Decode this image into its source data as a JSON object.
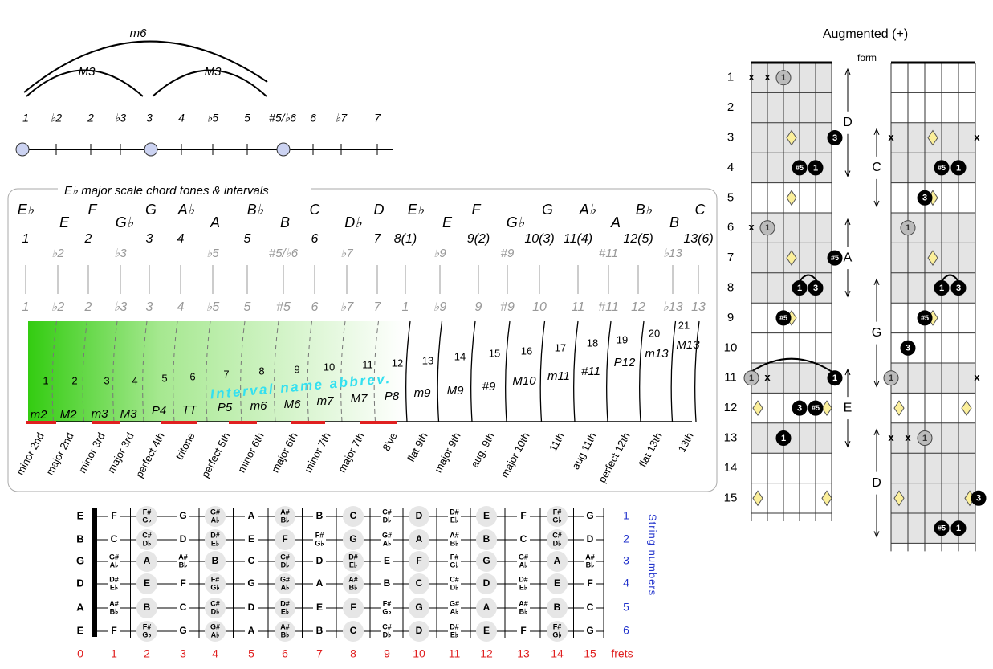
{
  "arc_diagram": {
    "arcs": [
      "m6",
      "M3",
      "M3"
    ],
    "labels": [
      "1",
      "♭2",
      "2",
      "♭3",
      "3",
      "4",
      "♭5",
      "5",
      "#5/♭6",
      "6",
      "♭7",
      "7"
    ]
  },
  "scale_box": {
    "title": "E♭ major scale chord tones & intervals",
    "notes": [
      "E♭",
      "E",
      "F",
      "G♭",
      "G",
      "A♭",
      "A",
      "B♭",
      "B",
      "C",
      "D♭",
      "D",
      "E♭",
      "E",
      "F",
      "G♭",
      "G",
      "A♭",
      "A",
      "B♭",
      "B",
      "C"
    ],
    "degrees": [
      "1",
      "♭2",
      "2",
      "♭3",
      "3",
      "4",
      "♭5",
      "5",
      "#5/♭6",
      "6",
      "♭7",
      "7",
      "8(1)",
      "♭9",
      "9(2)",
      "#9",
      "10(3)",
      "11(4)",
      "#11",
      "12(5)",
      "♭13",
      "13(6)"
    ],
    "gray_degrees": [
      "1",
      "♭2",
      "2",
      "♭3",
      "3",
      "4",
      "♭5",
      "5",
      "#5",
      "6",
      "♭7",
      "7",
      "1",
      "♭9",
      "9",
      "#9",
      "10",
      "11",
      "#11",
      "12",
      "♭13",
      "13"
    ],
    "semitones": [
      1,
      2,
      3,
      4,
      5,
      6,
      7,
      8,
      9,
      10,
      11,
      12,
      13,
      14,
      15,
      16,
      17,
      18,
      19,
      20,
      21
    ],
    "abbrev": [
      "m2",
      "M2",
      "m3",
      "M3",
      "P4",
      "TT",
      "P5",
      "m6",
      "M6",
      "m7",
      "M7",
      "P8",
      "m9",
      "M9",
      "#9",
      "M10",
      "m11",
      "#11",
      "P12",
      "m13",
      "M13"
    ],
    "annotation": "Interval name abbrev.",
    "names": [
      "minor 2nd",
      "major 2nd",
      "minor 3rd",
      "major 3rd",
      "perfect 4th",
      "tritone",
      "perfect 5th",
      "minor 6th",
      "major 6th",
      "minor 7th",
      "major 7th",
      "8've",
      "flat 9th",
      "major 9th",
      "aug. 9th",
      "major 10th",
      "11th",
      "aug 11th",
      "perfect 12th",
      "flat 13th",
      "13th"
    ]
  },
  "fretboard": {
    "open_strings": [
      "E",
      "B",
      "G",
      "D",
      "A",
      "E"
    ],
    "notes": [
      [
        "F",
        [
          "F#",
          "G♭"
        ],
        "G",
        [
          "G#",
          "A♭"
        ],
        "A",
        [
          "A#",
          "B♭"
        ],
        "B",
        "C",
        [
          "C#",
          "D♭"
        ],
        "D",
        [
          "D#",
          "E♭"
        ],
        "E",
        "F",
        [
          "F#",
          "G♭"
        ],
        "G"
      ],
      [
        "C",
        [
          "C#",
          "D♭"
        ],
        "D",
        [
          "D#",
          "E♭"
        ],
        "E",
        "F",
        [
          "F#",
          "G♭"
        ],
        "G",
        [
          "G#",
          "A♭"
        ],
        "A",
        [
          "A#",
          "B♭"
        ],
        "B",
        "C",
        [
          "C#",
          "D♭"
        ],
        "D"
      ],
      [
        [
          "G#",
          "A♭"
        ],
        "A",
        [
          "A#",
          "B♭"
        ],
        "B",
        "C",
        [
          "C#",
          "D♭"
        ],
        "D",
        [
          "D#",
          "E♭"
        ],
        "E",
        "F",
        [
          "F#",
          "G♭"
        ],
        "G",
        [
          "G#",
          "A♭"
        ],
        "A",
        [
          "A#",
          "B♭"
        ]
      ],
      [
        [
          "D#",
          "E♭"
        ],
        "E",
        "F",
        [
          "F#",
          "G♭"
        ],
        "G",
        [
          "G#",
          "A♭"
        ],
        "A",
        [
          "A#",
          "B♭"
        ],
        "B",
        "C",
        [
          "C#",
          "D♭"
        ],
        "D",
        [
          "D#",
          "E♭"
        ],
        "E",
        "F"
      ],
      [
        [
          "A#",
          "B♭"
        ],
        "B",
        "C",
        [
          "C#",
          "D♭"
        ],
        "D",
        [
          "D#",
          "E♭"
        ],
        "E",
        "F",
        [
          "F#",
          "G♭"
        ],
        "G",
        [
          "G#",
          "A♭"
        ],
        "A",
        [
          "A#",
          "B♭"
        ],
        "B",
        "C"
      ],
      [
        "F",
        [
          "F#",
          "G♭"
        ],
        "G",
        [
          "G#",
          "A♭"
        ],
        "A",
        [
          "A#",
          "B♭"
        ],
        "B",
        "C",
        [
          "C#",
          "D♭"
        ],
        "D",
        [
          "D#",
          "E♭"
        ],
        "E",
        "F",
        [
          "F#",
          "G♭"
        ],
        "G"
      ]
    ],
    "string_numbers": [
      1,
      2,
      3,
      4,
      5,
      6
    ],
    "string_label": "String numbers",
    "frets": [
      0,
      1,
      2,
      3,
      4,
      5,
      6,
      7,
      8,
      9,
      10,
      11,
      12,
      13,
      14,
      15
    ],
    "frets_label": "frets"
  },
  "augmented": {
    "title": "Augmented (+)",
    "form_label": "form",
    "fret_numbers": [
      1,
      2,
      3,
      4,
      5,
      6,
      7,
      8,
      9,
      10,
      11,
      12,
      13,
      14,
      15
    ],
    "diagrams": [
      {
        "forms": [
          "D",
          "A",
          "E"
        ],
        "markers": [
          {
            "fret": 1,
            "string": 6,
            "label": "x",
            "style": "mute"
          },
          {
            "fret": 1,
            "string": 5,
            "label": "x",
            "style": "mute"
          },
          {
            "fret": 1,
            "string": 4,
            "label": "1",
            "style": "root"
          },
          {
            "fret": 3,
            "string": 1,
            "label": "3",
            "style": "tone"
          },
          {
            "fret": 4,
            "string": 3,
            "label": "#5",
            "style": "tone"
          },
          {
            "fret": 4,
            "string": 2,
            "label": "1",
            "style": "tone"
          },
          {
            "fret": 6,
            "string": 6,
            "label": "x",
            "style": "mute"
          },
          {
            "fret": 6,
            "string": 5,
            "label": "1",
            "style": "root"
          },
          {
            "fret": 7,
            "string": 1,
            "label": "#5",
            "style": "tone"
          },
          {
            "fret": 8,
            "string": 3,
            "label": "1",
            "style": "tone"
          },
          {
            "fret": 8,
            "string": 2,
            "label": "3",
            "style": "tone"
          },
          {
            "fret": 9,
            "string": 4,
            "label": "#5",
            "style": "tone"
          },
          {
            "fret": 11,
            "string": 6,
            "label": "1",
            "style": "root"
          },
          {
            "fret": 11,
            "string": 5,
            "label": "x",
            "style": "mute"
          },
          {
            "fret": 11,
            "string": 1,
            "label": "1",
            "style": "tone"
          },
          {
            "fret": 12,
            "string": 3,
            "label": "3",
            "style": "tone"
          },
          {
            "fret": 12,
            "string": 2,
            "label": "#5",
            "style": "tone"
          },
          {
            "fret": 13,
            "string": 4,
            "label": "1",
            "style": "tone"
          }
        ]
      },
      {
        "forms": [
          "C",
          "G",
          "D"
        ],
        "markers": [
          {
            "fret": 3,
            "string": 6,
            "label": "x",
            "style": "mute"
          },
          {
            "fret": 3,
            "string": 1,
            "label": "x",
            "style": "mute"
          },
          {
            "fret": 4,
            "string": 3,
            "label": "#5",
            "style": "tone"
          },
          {
            "fret": 4,
            "string": 2,
            "label": "1",
            "style": "tone"
          },
          {
            "fret": 5,
            "string": 4,
            "label": "3",
            "style": "tone"
          },
          {
            "fret": 6,
            "string": 5,
            "label": "1",
            "style": "root"
          },
          {
            "fret": 8,
            "string": 3,
            "label": "1",
            "style": "tone"
          },
          {
            "fret": 8,
            "string": 2,
            "label": "3",
            "style": "tone"
          },
          {
            "fret": 9,
            "string": 4,
            "label": "#5",
            "style": "tone"
          },
          {
            "fret": 10,
            "string": 5,
            "label": "3",
            "style": "tone"
          },
          {
            "fret": 11,
            "string": 6,
            "label": "1",
            "style": "root"
          },
          {
            "fret": 11,
            "string": 1,
            "label": "x",
            "style": "mute"
          },
          {
            "fret": 13,
            "string": 6,
            "label": "x",
            "style": "mute"
          },
          {
            "fret": 13,
            "string": 5,
            "label": "x",
            "style": "mute"
          },
          {
            "fret": 13,
            "string": 4,
            "label": "1",
            "style": "root"
          },
          {
            "fret": 15,
            "string": 1,
            "label": "3",
            "style": "tone"
          },
          {
            "fret": 16,
            "string": 3,
            "label": "#5",
            "style": "tone"
          },
          {
            "fret": 16,
            "string": 2,
            "label": "1",
            "style": "tone"
          }
        ]
      }
    ]
  }
}
